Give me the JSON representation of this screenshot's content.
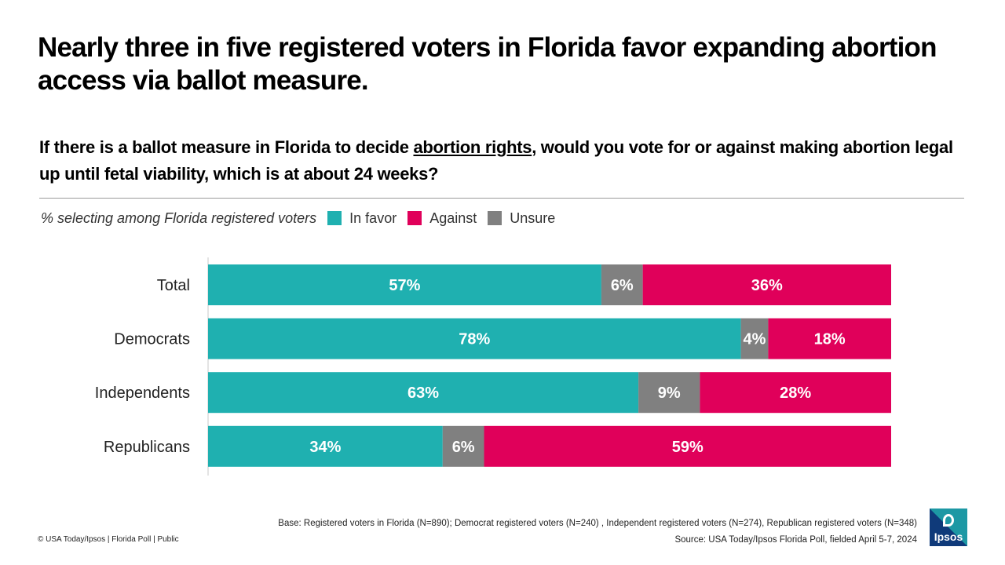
{
  "header": {
    "title": "Nearly three in five registered voters in Florida favor expanding abortion access via ballot measure."
  },
  "question": {
    "before": "If there is a ballot measure in Florida to decide ",
    "underlined": "abortion rights",
    "after": ", would you vote for or against making abortion legal up until fetal viability, which is at about 24 weeks?"
  },
  "legend": {
    "note": "% selecting among Florida registered voters",
    "items": [
      {
        "label": "In favor",
        "color": "#1fb0b0"
      },
      {
        "label": "Against",
        "color": "#e0005a"
      },
      {
        "label": "Unsure",
        "color": "#808080"
      }
    ]
  },
  "chart_data": {
    "type": "bar",
    "orientation": "horizontal",
    "stacked": true,
    "percent_stacked": true,
    "categories": [
      "Total",
      "Democrats",
      "Independents",
      "Republicans"
    ],
    "series": [
      {
        "name": "In favor",
        "color": "#1fb0b0",
        "values": [
          57,
          78,
          63,
          34
        ],
        "labels": [
          "57%",
          "78%",
          "63%",
          "34%"
        ]
      },
      {
        "name": "Unsure",
        "color": "#808080",
        "values": [
          6,
          4,
          9,
          6
        ],
        "labels": [
          "6%",
          "4%",
          "9%",
          "6%"
        ]
      },
      {
        "name": "Against",
        "color": "#e0005a",
        "values": [
          36,
          18,
          28,
          59
        ],
        "labels": [
          "36%",
          "18%",
          "28%",
          "59%"
        ]
      }
    ],
    "xlim": [
      0,
      100
    ],
    "legend_position": "top-left",
    "grid": false
  },
  "footer": {
    "base": "Base: Registered voters in Florida (N=890); Democrat registered voters (N=240) , Independent registered voters (N=274), Republican registered voters (N=348)",
    "source": "Source: USA Today/Ipsos  Florida Poll, fielded April 5-7, 2024",
    "copyright": "© USA Today/Ipsos | Florida Poll | Public",
    "logo_text": "Ipsos"
  }
}
